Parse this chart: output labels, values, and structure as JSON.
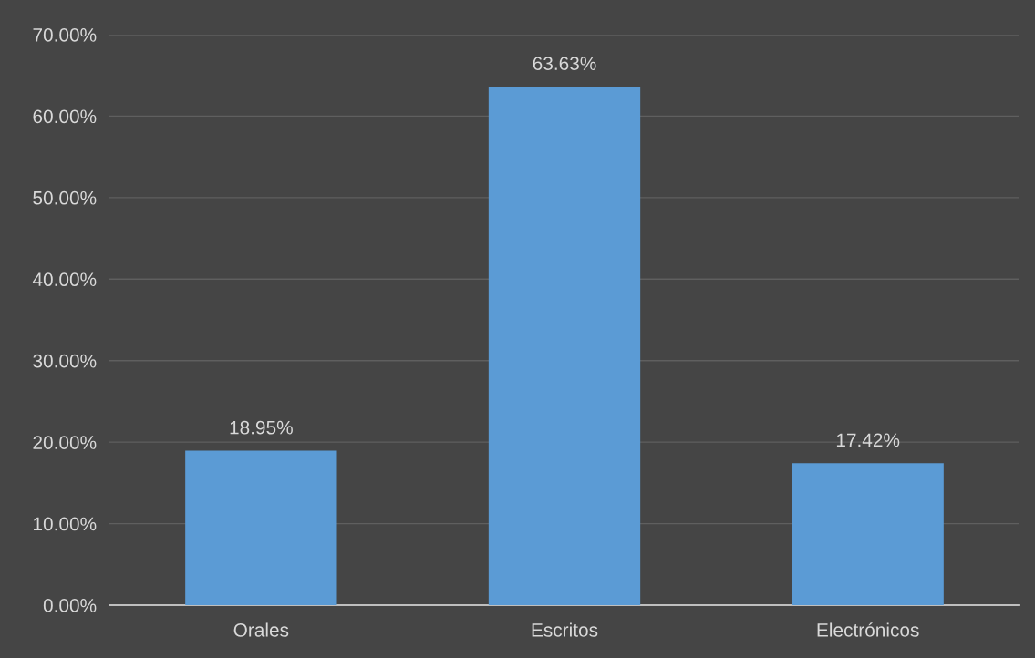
{
  "chart_data": {
    "type": "bar",
    "categories": [
      "Orales",
      "Escritos",
      "Electrónicos"
    ],
    "values": [
      18.95,
      63.63,
      17.42
    ],
    "color": "#5b9bd5",
    "value_labels": [
      "18.95%",
      "63.63%",
      "17.42%"
    ],
    "ylim": [
      0,
      70
    ],
    "yticks": [
      {
        "value": 0,
        "label": "0.00%"
      },
      {
        "value": 10,
        "label": "10.00%"
      },
      {
        "value": 20,
        "label": "20.00%"
      },
      {
        "value": 30,
        "label": "30.00%"
      },
      {
        "value": 40,
        "label": "40.00%"
      },
      {
        "value": 50,
        "label": "50.00%"
      },
      {
        "value": 60,
        "label": "60.00%"
      },
      {
        "value": 70,
        "label": "70.00%"
      }
    ],
    "grid": "y",
    "legend": false
  }
}
